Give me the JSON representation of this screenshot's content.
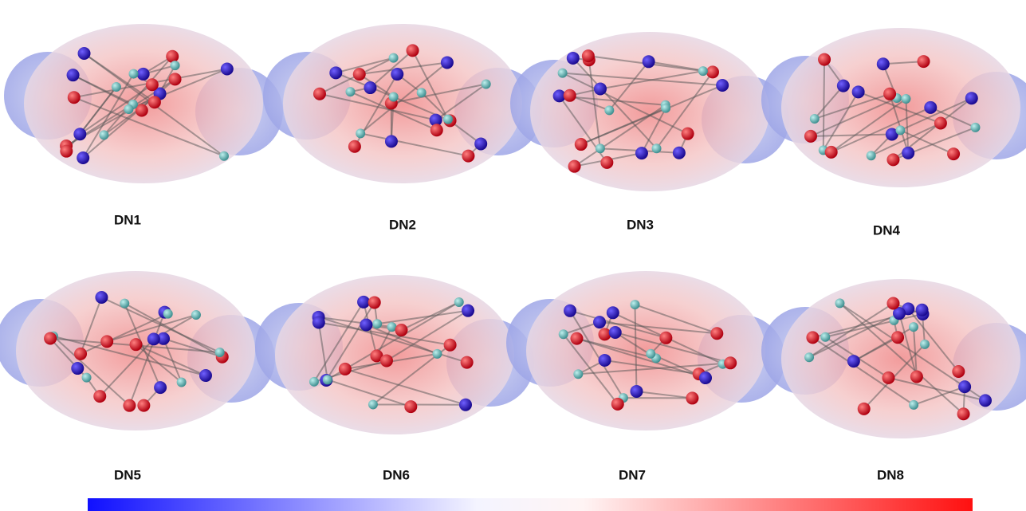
{
  "figure": {
    "panels": [
      {
        "label": "DN1"
      },
      {
        "label": "DN2"
      },
      {
        "label": "DN3"
      },
      {
        "label": "DN4"
      },
      {
        "label": "DN5"
      },
      {
        "label": "DN6"
      },
      {
        "label": "DN7"
      },
      {
        "label": "DN8"
      }
    ]
  }
}
